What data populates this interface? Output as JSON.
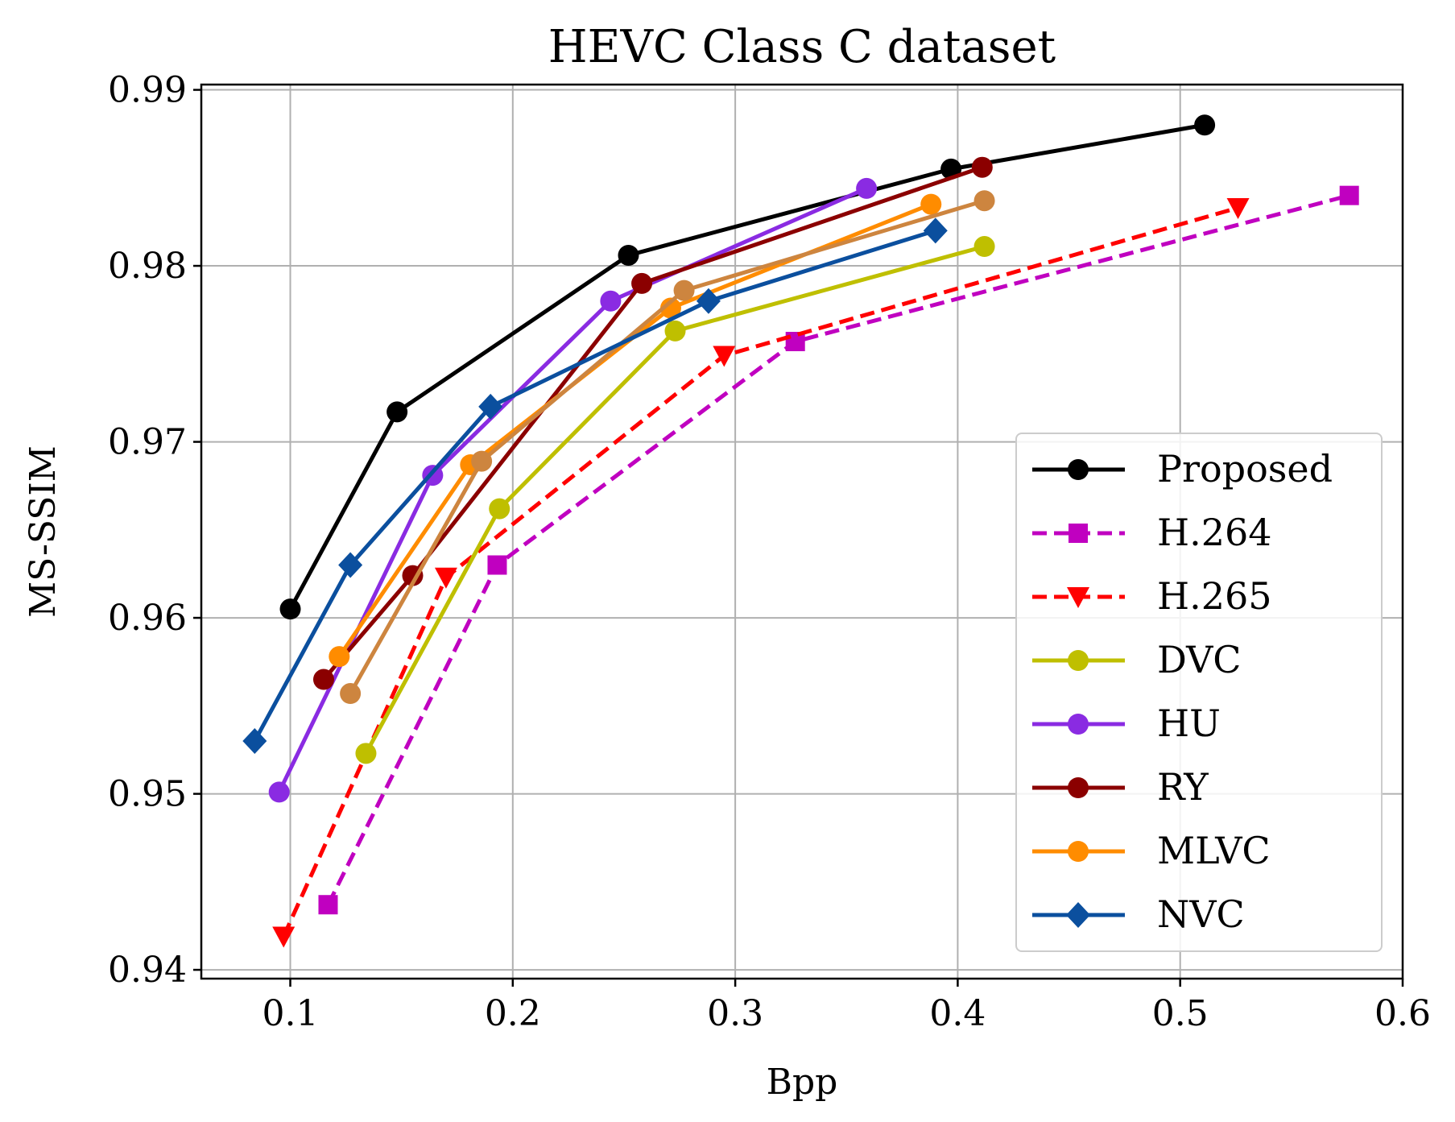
{
  "chart_data": {
    "type": "line",
    "title": "HEVC Class C dataset",
    "xlabel": "Bpp",
    "ylabel": "MS-SSIM",
    "xlim": [
      0.06,
      0.6
    ],
    "ylim": [
      0.9395,
      0.9903
    ],
    "xticks": [
      0.1,
      0.2,
      0.3,
      0.4,
      0.5,
      0.6
    ],
    "xtick_labels": [
      "0.1",
      "0.2",
      "0.3",
      "0.4",
      "0.5",
      "0.6"
    ],
    "yticks": [
      0.94,
      0.95,
      0.96,
      0.97,
      0.98,
      0.99
    ],
    "ytick_labels": [
      "0.94",
      "0.95",
      "0.96",
      "0.97",
      "0.98",
      "0.99"
    ],
    "grid": true,
    "legend_position": "lower-right",
    "series": [
      {
        "name": "Proposed",
        "color": "#000000",
        "dash": "solid",
        "marker": "circle",
        "x": [
          0.1,
          0.148,
          0.252,
          0.397,
          0.511
        ],
        "y": [
          0.9605,
          0.9717,
          0.9806,
          0.9855,
          0.988
        ]
      },
      {
        "name": "H.264",
        "color": "#c000c0",
        "dash": "dashed",
        "marker": "square",
        "x": [
          0.117,
          0.193,
          0.327,
          0.576
        ],
        "y": [
          0.9437,
          0.963,
          0.9757,
          0.984
        ]
      },
      {
        "name": "H.265",
        "color": "#ff0000",
        "dash": "dashed",
        "marker": "triangle-down",
        "x": [
          0.097,
          0.17,
          0.295,
          0.526
        ],
        "y": [
          0.9419,
          0.9623,
          0.9749,
          0.9833
        ]
      },
      {
        "name": "DVC",
        "color": "#bfbf00",
        "dash": "solid",
        "marker": "circle",
        "x": [
          0.134,
          0.194,
          0.273,
          0.412
        ],
        "y": [
          0.9523,
          0.9662,
          0.9763,
          0.9811
        ]
      },
      {
        "name": "HU",
        "color": "#8a2be2",
        "dash": "solid",
        "marker": "circle",
        "x": [
          0.095,
          0.164,
          0.244,
          0.359
        ],
        "y": [
          0.9501,
          0.9681,
          0.978,
          0.9844
        ]
      },
      {
        "name": "RY",
        "color": "#8b0000",
        "dash": "solid",
        "marker": "circle",
        "x": [
          0.115,
          0.155,
          0.258,
          0.411
        ],
        "y": [
          0.9565,
          0.9624,
          0.979,
          0.9856
        ]
      },
      {
        "name": "MLVC",
        "color": "#ff8c00",
        "dash": "solid",
        "marker": "circle",
        "x": [
          0.122,
          0.181,
          0.271,
          0.388
        ],
        "y": [
          0.9578,
          0.9687,
          0.9776,
          0.9835
        ]
      },
      {
        "name": "",
        "color": "#cd853f",
        "dash": "solid",
        "marker": "circle",
        "x": [
          0.127,
          0.186,
          0.277,
          0.412
        ],
        "y": [
          0.9557,
          0.9689,
          0.9786,
          0.9837
        ]
      },
      {
        "name": "NVC",
        "color": "#0b4f9e",
        "dash": "solid",
        "marker": "diamond",
        "x": [
          0.084,
          0.127,
          0.19,
          0.288,
          0.39
        ],
        "y": [
          0.953,
          0.963,
          0.972,
          0.978,
          0.982
        ]
      }
    ]
  }
}
